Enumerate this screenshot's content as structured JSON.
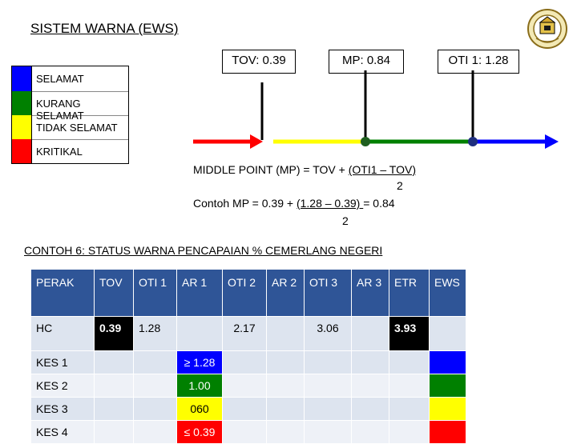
{
  "title": "SISTEM WARNA (EWS)",
  "logo": {
    "icon": "crest-logo-icon",
    "text": ""
  },
  "callouts": {
    "tov": "TOV: 0.39",
    "mp": "MP: 0.84",
    "oti1": "OTI 1: 1.28"
  },
  "legend": [
    {
      "label": "SELAMAT",
      "color": "#0000ff"
    },
    {
      "label": "KURANG SELAMAT",
      "color": "#008000"
    },
    {
      "label": "TIDAK SELAMAT",
      "color": "#ffff00"
    },
    {
      "label": "KRITIKAL",
      "color": "#ff0000"
    }
  ],
  "scale_colors": {
    "red": "#ff0000",
    "yellow": "#ffff00",
    "green": "#008000",
    "blue": "#0000ff"
  },
  "formula": {
    "line1_pre": "MIDDLE POINT (MP) = TOV + ",
    "line1_u": "(OTI1 – TOV)",
    "line1_den": "2",
    "line2_pre": "Contoh MP = 0.39 + ",
    "line2_u": "(1.28 – 0.39) ",
    "line2_post": "= 0.84",
    "line2_den": "2"
  },
  "section_heading": "CONTOH 6: STATUS WARNA PENCAPAIAN % CEMERLANG NEGERI",
  "table": {
    "headers": [
      "PERAK",
      "TOV",
      "OTI 1",
      "AR 1",
      "OTI 2",
      "AR 2",
      "OTI 3",
      "AR 3",
      "ETR",
      "EWS"
    ],
    "hc": {
      "label": "HC",
      "tov": "0.39",
      "oti1": "1.28",
      "ar1": "",
      "oti2": "2.17",
      "ar2": "",
      "oti3": "3.06",
      "ar3": "",
      "etr": "3.93",
      "ews": ""
    },
    "rows": [
      {
        "label": "KES 1",
        "ar1": "≥ 1.28",
        "ar1_color": "#0000ff",
        "ews_color": "#0000ff"
      },
      {
        "label": "KES 2",
        "ar1": "1.00",
        "ar1_color": "#008000",
        "ews_color": "#008000"
      },
      {
        "label": "KES 3",
        "ar1": "060",
        "ar1_color": "#ffff00",
        "ews_color": "#ffff00"
      },
      {
        "label": "KES 4",
        "ar1": "≤ 0.39",
        "ar1_color": "#ff0000",
        "ews_color": "#ff0000"
      }
    ]
  }
}
